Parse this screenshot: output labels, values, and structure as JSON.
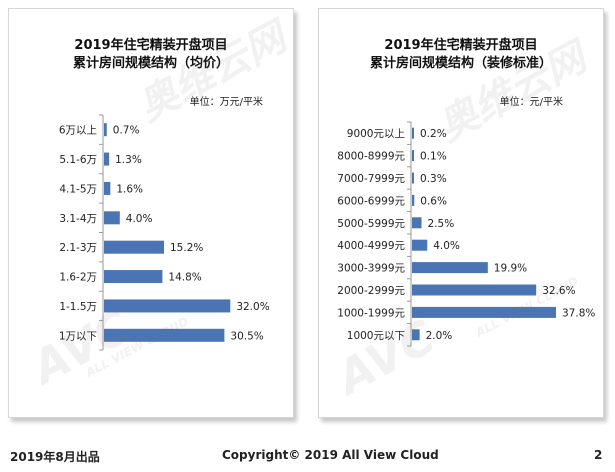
{
  "watermark": {
    "brand": "AVC",
    "sub": "ALL VIEW CLOUD",
    "cn": "奥维云网"
  },
  "footer": {
    "date": "2019年8月出品",
    "copyright": "Copyright© 2019  All View Cloud",
    "page": "2"
  },
  "colors": {
    "bar": "#4a74b3"
  },
  "chart_data": [
    {
      "type": "bar",
      "orientation": "horizontal",
      "title": "2019年住宅精装开盘项目累计房间规模结构（均价）",
      "title_lines": [
        "2019年住宅精装开盘项目",
        "累计房间规模结构（均价）"
      ],
      "unit": "单位：万元/平米",
      "categories": [
        "6万以上",
        "5.1-6万",
        "4.1-5万",
        "3.1-4万",
        "2.1-3万",
        "1.6-2万",
        "1-1.5万",
        "1万以下"
      ],
      "values": [
        0.7,
        1.3,
        1.6,
        4.0,
        15.2,
        14.8,
        32.0,
        30.5
      ],
      "labels": [
        "0.7%",
        "1.3%",
        "1.6%",
        "4.0%",
        "15.2%",
        "14.8%",
        "32.0%",
        "30.5%"
      ],
      "xlim": [
        0,
        38
      ]
    },
    {
      "type": "bar",
      "orientation": "horizontal",
      "title": "2019年住宅精装开盘项目累计房间规模结构（装修标准）",
      "title_lines": [
        "2019年住宅精装开盘项目",
        "累计房间规模结构（装修标准）"
      ],
      "unit": "单位：元/平米",
      "categories": [
        "9000元以上",
        "8000-8999元",
        "7000-7999元",
        "6000-6999元",
        "5000-5999元",
        "4000-4999元",
        "3000-3999元",
        "2000-2999元",
        "1000-1999元",
        "1000元以下"
      ],
      "values": [
        0.2,
        0.1,
        0.3,
        0.6,
        2.5,
        4.0,
        19.9,
        32.6,
        37.8,
        2.0
      ],
      "labels": [
        "0.2%",
        "0.1%",
        "0.3%",
        "0.6%",
        "2.5%",
        "4.0%",
        "19.9%",
        "32.6%",
        "37.8%",
        "2.0%"
      ],
      "xlim": [
        0,
        42
      ]
    }
  ]
}
